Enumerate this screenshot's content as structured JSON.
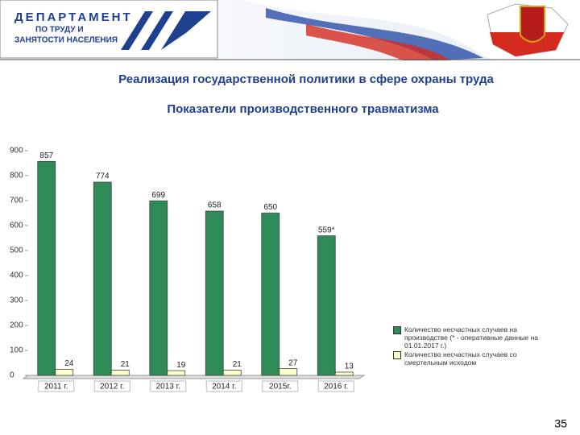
{
  "header": {
    "lines": [
      "ДЕПАРТАМЕНТ",
      "ПО ТРУДУ И",
      "ЗАНЯТОСТИ НАСЕЛЕНИЯ"
    ]
  },
  "slide": {
    "title": "Реализация государственной политики в сфере охраны труда",
    "subtitle": "Показатели производственного травматизма",
    "page_number": 35
  },
  "chart_data": {
    "type": "bar",
    "categories": [
      "2011 г.",
      "2012 г.",
      "2013 г.",
      "2014 г.",
      "2015г.",
      "2016 г."
    ],
    "series": [
      {
        "name": "Количество несчастных случаев на производстве (* - оперативные данные на 01.01.2017 г.)",
        "color": "#2e8b57",
        "values": [
          857,
          774,
          699,
          658,
          650,
          559
        ],
        "value_labels": [
          "857",
          "774",
          "699",
          "658",
          "650",
          "559*"
        ]
      },
      {
        "name": "Количество несчастных случаев со смертельным исходом",
        "color": "#ffffcc",
        "values": [
          24,
          21,
          19,
          21,
          27,
          13
        ]
      }
    ],
    "ylim": [
      0,
      900
    ],
    "yticks": [
      0,
      100,
      200,
      300,
      400,
      500,
      600,
      700,
      800,
      900
    ],
    "grid": false,
    "legend": "lower right"
  }
}
